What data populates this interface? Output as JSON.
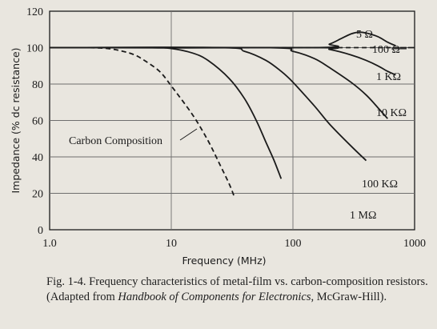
{
  "chart_data": {
    "type": "line",
    "title": "",
    "xlabel": "Frequency (MHz)",
    "ylabel": "Impedance (% dc resistance)",
    "x_scale": "log",
    "xlim": [
      1.0,
      1000
    ],
    "ylim": [
      0,
      120
    ],
    "x_tick_labels": [
      "1.0",
      "10",
      "100",
      "1000"
    ],
    "y_tick_labels": [
      "0",
      "20",
      "40",
      "60",
      "80",
      "100",
      "120"
    ],
    "grid": true,
    "series": [
      {
        "name": "Carbon Composition",
        "style": "dashed",
        "x": [
          1,
          2,
          3,
          4,
          5,
          6,
          8,
          10,
          15,
          20,
          25,
          30,
          33
        ],
        "y": [
          100,
          100,
          99.5,
          98,
          96,
          93,
          87,
          79,
          63,
          49,
          36,
          25,
          18
        ]
      },
      {
        "name": "1 MΩ",
        "style": "solid",
        "x": [
          1,
          6,
          10,
          15,
          20,
          30,
          40,
          50,
          60,
          70,
          80
        ],
        "y": [
          100,
          100,
          99.5,
          97,
          93,
          83,
          72,
          60,
          48,
          38,
          28
        ]
      },
      {
        "name": "100 KΩ",
        "style": "solid",
        "x": [
          1,
          25,
          40,
          60,
          80,
          100,
          150,
          200,
          300,
          400
        ],
        "y": [
          100,
          100,
          98,
          93,
          87,
          81,
          68,
          58,
          46,
          38
        ]
      },
      {
        "name": "10 KΩ",
        "style": "solid",
        "x": [
          1,
          60,
          100,
          150,
          200,
          300,
          400,
          500,
          600
        ],
        "y": [
          100,
          100,
          98,
          94,
          89,
          81,
          74,
          67,
          61
        ]
      },
      {
        "name": "1 KΩ",
        "style": "solid",
        "x": [
          1,
          150,
          200,
          300,
          400,
          500,
          600,
          700
        ],
        "y": [
          100,
          100,
          99,
          96,
          93,
          90,
          87,
          85
        ]
      },
      {
        "name": "100 Ω",
        "style": "dashed",
        "x": [
          1,
          600,
          700
        ],
        "y": [
          100,
          100,
          100
        ]
      },
      {
        "name": "5 Ω",
        "style": "solid",
        "x": [
          1,
          150,
          200,
          250,
          300,
          350,
          400,
          500,
          600,
          700
        ],
        "y": [
          100,
          100,
          102,
          105,
          107.5,
          108.5,
          108,
          106,
          103,
          101
        ]
      }
    ]
  },
  "caption": {
    "fig_number": "Fig. 1-4.",
    "text_before_italic": "Frequency characteristics of metal-film vs. carbon-composition resistors. (Adapted from ",
    "italic": "Handbook of Components for Electronics",
    "text_after_italic": ", McGraw-Hill)."
  },
  "colors": {
    "background": "#e9e6df",
    "ink": "#1b1b1b",
    "grid": "#6e6e6e"
  }
}
